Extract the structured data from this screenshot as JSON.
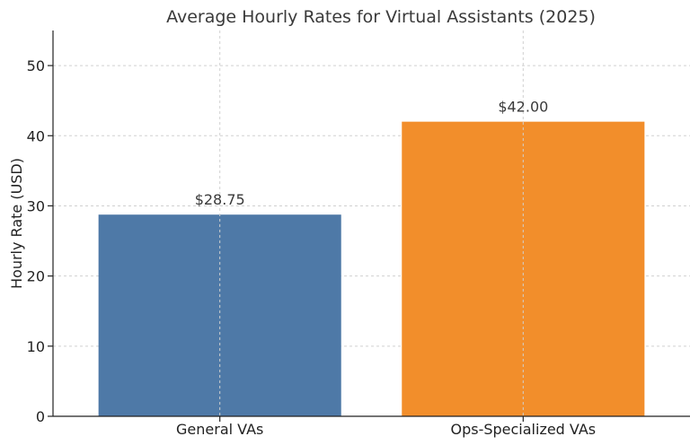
{
  "chart_data": {
    "type": "bar",
    "title": "Average Hourly Rates for Virtual Assistants (2025)",
    "xlabel": "",
    "ylabel": "Hourly Rate (USD)",
    "categories": [
      "General VAs",
      "Ops-Specialized VAs"
    ],
    "values": [
      28.75,
      42.0
    ],
    "data_labels": [
      "$28.75",
      "$42.00"
    ],
    "colors": [
      "#4e79a7",
      "#f28e2b"
    ],
    "ylim": [
      0,
      55
    ],
    "yticks": [
      0,
      10,
      20,
      30,
      40,
      50
    ],
    "grid": true,
    "legend": "none"
  }
}
